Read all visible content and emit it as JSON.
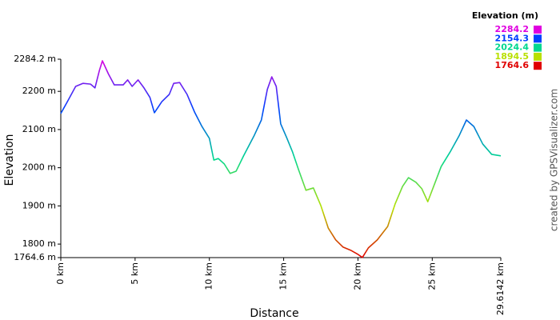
{
  "chart_data": {
    "type": "line",
    "x_label": "Distance",
    "y_label": "Elevation",
    "credit": "created by GPSVisualizer.com",
    "legend_title": "Elevation (m)",
    "legend": [
      {
        "value": 2284.2,
        "color": "#e000e0"
      },
      {
        "value": 2154.3,
        "color": "#0040ff"
      },
      {
        "value": 2024.4,
        "color": "#00d890"
      },
      {
        "value": 1894.5,
        "color": "#b8e000"
      },
      {
        "value": 1764.6,
        "color": "#e00000"
      }
    ],
    "xlim": [
      0,
      29.6142
    ],
    "ylim": [
      1764.6,
      2284.2
    ],
    "xticks": [
      {
        "value": 0,
        "label": "0 km"
      },
      {
        "value": 5,
        "label": "5 km"
      },
      {
        "value": 10,
        "label": "10 km"
      },
      {
        "value": 15,
        "label": "15 km"
      },
      {
        "value": 20,
        "label": "20 km"
      },
      {
        "value": 25,
        "label": "25 km"
      },
      {
        "value": 29.6142,
        "label": "29.6142 km"
      }
    ],
    "yticks": [
      {
        "value": 1764.6,
        "label": "1764.6 m"
      },
      {
        "value": 1800,
        "label": "1800 m"
      },
      {
        "value": 1900,
        "label": "1900 m"
      },
      {
        "value": 2000,
        "label": "2000 m"
      },
      {
        "value": 2100,
        "label": "2100 m"
      },
      {
        "value": 2200,
        "label": "2200 m"
      },
      {
        "value": 2284.2,
        "label": "2284.2 m"
      }
    ],
    "x": [
      0,
      0.5,
      1,
      1.5,
      2,
      2.3,
      2.6,
      2.8,
      3.2,
      3.6,
      4.2,
      4.5,
      4.8,
      5.2,
      5.6,
      6,
      6.3,
      6.8,
      7.3,
      7.6,
      8,
      8.5,
      9,
      9.5,
      10,
      10.3,
      10.6,
      11,
      11.4,
      11.8,
      12.3,
      13,
      13.5,
      13.9,
      14.2,
      14.5,
      14.8,
      15.2,
      15.6,
      16,
      16.5,
      17,
      17.5,
      18,
      18.5,
      19,
      19.5,
      20,
      20.3,
      20.7,
      21.3,
      22,
      22.5,
      23,
      23.4,
      23.9,
      24.3,
      24.7,
      25.2,
      25.6,
      26.2,
      26.8,
      27.3,
      27.8,
      28.4,
      29,
      29.6142
    ],
    "values": [
      2142,
      2177,
      2213,
      2221,
      2219,
      2209,
      2255,
      2280,
      2246,
      2217,
      2217,
      2230,
      2213,
      2230,
      2209,
      2184,
      2144,
      2173,
      2192,
      2221,
      2223,
      2192,
      2146,
      2108,
      2077,
      2020,
      2024,
      2010,
      1985,
      1991,
      2031,
      2083,
      2125,
      2205,
      2238,
      2213,
      2115,
      2079,
      2041,
      1995,
      1941,
      1947,
      1901,
      1842,
      1811,
      1792,
      1784,
      1773,
      1765,
      1790,
      1811,
      1846,
      1905,
      1951,
      1974,
      1962,
      1945,
      1911,
      1962,
      2003,
      2041,
      2083,
      2125,
      2108,
      2062,
      2035,
      2031
    ]
  }
}
